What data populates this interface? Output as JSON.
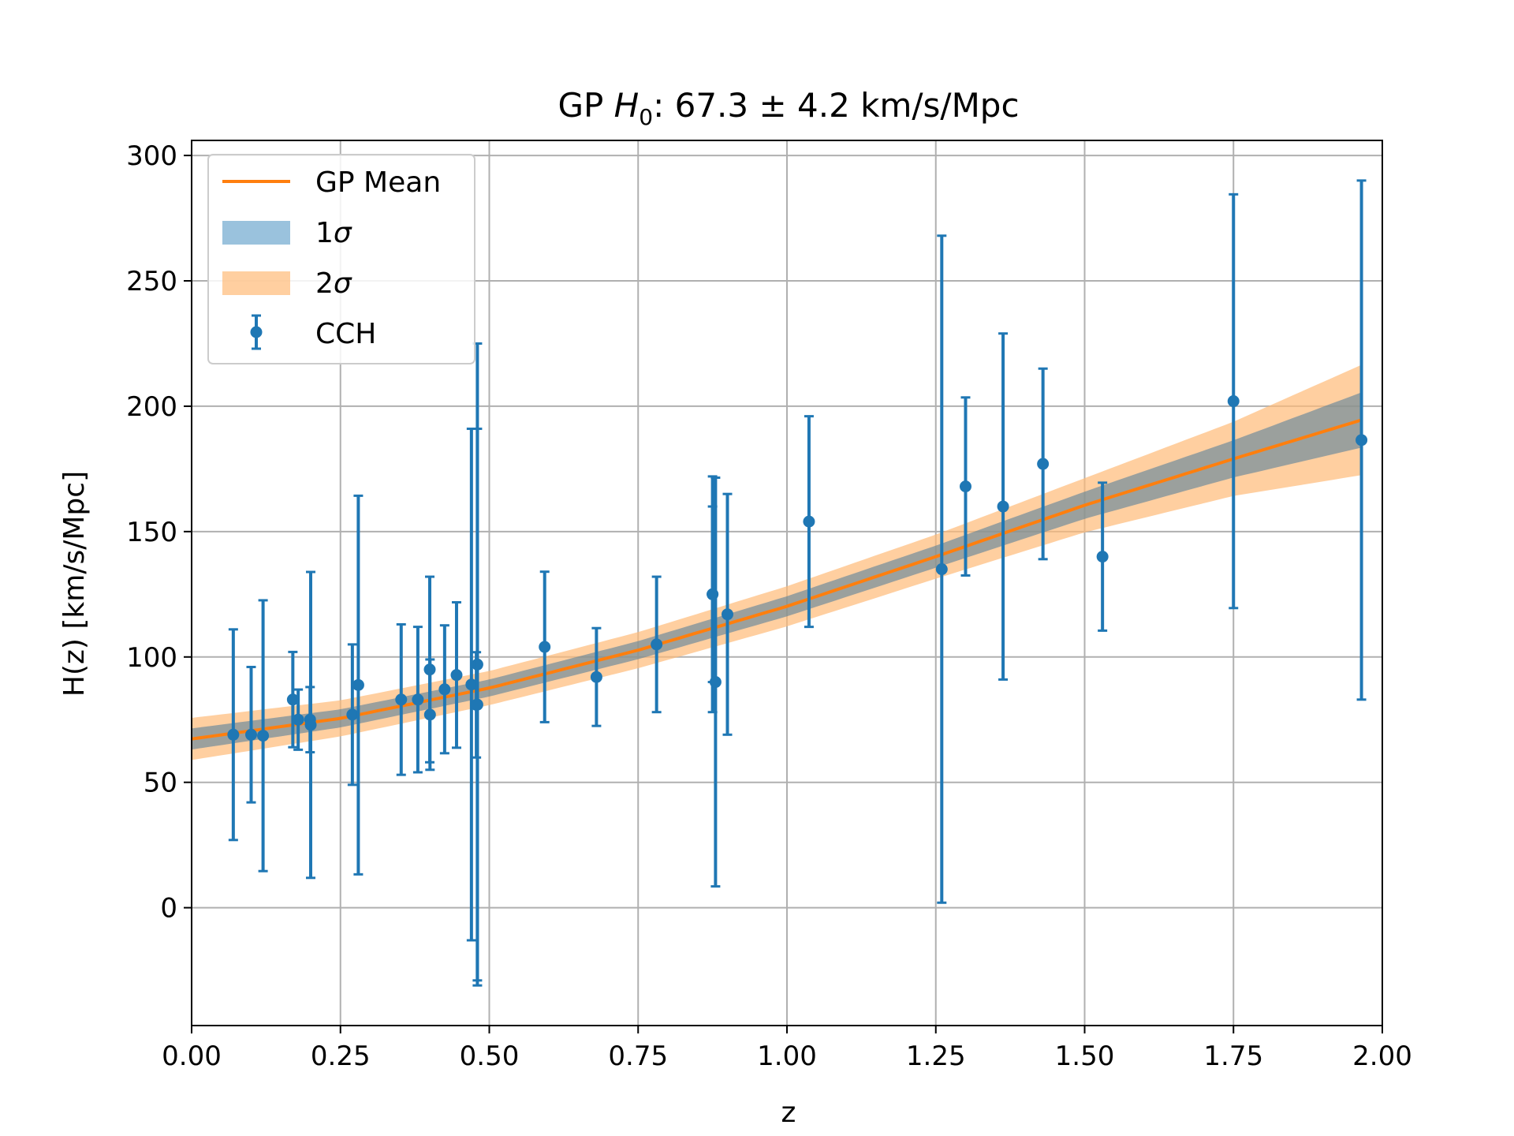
{
  "chart_data": {
    "type": "scatter",
    "title": {
      "prefix": "GP ",
      "symbol": "H",
      "subscript": "0",
      "suffix": ": 67.3 ± 4.2 km/s/Mpc"
    },
    "xlabel": "z",
    "ylabel": "H(z) [km/s/Mpc]",
    "xlim": [
      0,
      2
    ],
    "ylim": [
      -47,
      306
    ],
    "xticks": [
      0,
      0.25,
      0.5,
      0.75,
      1.0,
      1.25,
      1.5,
      1.75,
      2.0
    ],
    "xtick_labels": [
      "0.00",
      "0.25",
      "0.50",
      "0.75",
      "1.00",
      "1.25",
      "1.50",
      "1.75",
      "2.00"
    ],
    "yticks": [
      0,
      50,
      100,
      150,
      200,
      250,
      300
    ],
    "ytick_labels": [
      "0",
      "50",
      "100",
      "150",
      "200",
      "250",
      "300"
    ],
    "grid": true,
    "legend_position": "top-left",
    "legend": [
      {
        "label": "GP Mean",
        "kind": "line"
      },
      {
        "label": "1",
        "symbol": "σ",
        "kind": "band1"
      },
      {
        "label": "2",
        "symbol": "σ",
        "kind": "band2"
      },
      {
        "label": "CCH",
        "kind": "errorbar"
      }
    ],
    "colors": {
      "mean": "#ff7f0e",
      "band1": "#1f77b4",
      "band2": "#ffbb78",
      "points": "#1f77b4",
      "grid": "#b0b0b0"
    },
    "gp": {
      "z": [
        0.0,
        0.25,
        0.5,
        0.75,
        1.0,
        1.25,
        1.5,
        1.75,
        1.965
      ],
      "mean": [
        67.3,
        75.5,
        87.6,
        102.7,
        120.2,
        140.0,
        160.5,
        179.0,
        194.5
      ],
      "sigma": [
        4.2,
        3.6,
        3.4,
        3.6,
        4.0,
        4.4,
        5.4,
        7.4,
        11.0
      ]
    },
    "series": [
      {
        "name": "CCH",
        "points": [
          {
            "z": 0.07,
            "h": 69.0,
            "err": 42.0
          },
          {
            "z": 0.1,
            "h": 69.0,
            "err": 27.0
          },
          {
            "z": 0.12,
            "h": 68.6,
            "err": 54.0
          },
          {
            "z": 0.17,
            "h": 83.0,
            "err": 19.0
          },
          {
            "z": 0.179,
            "h": 75.0,
            "err": 12.0
          },
          {
            "z": 0.199,
            "h": 75.0,
            "err": 13.0
          },
          {
            "z": 0.2,
            "h": 72.9,
            "err": 61.0
          },
          {
            "z": 0.27,
            "h": 77.0,
            "err": 28.0
          },
          {
            "z": 0.28,
            "h": 88.8,
            "err": 75.5
          },
          {
            "z": 0.352,
            "h": 83.0,
            "err": 30.0
          },
          {
            "z": 0.38,
            "h": 83.0,
            "err": 29.0
          },
          {
            "z": 0.4,
            "h": 95.0,
            "err": 37.0
          },
          {
            "z": 0.4004,
            "h": 77.0,
            "err": 22.0
          },
          {
            "z": 0.425,
            "h": 87.1,
            "err": 25.5
          },
          {
            "z": 0.445,
            "h": 92.8,
            "err": 29.0
          },
          {
            "z": 0.47,
            "h": 89.0,
            "err": 102.0
          },
          {
            "z": 0.4783,
            "h": 80.9,
            "err": 21.0
          },
          {
            "z": 0.48,
            "h": 97.0,
            "err": 128.0
          },
          {
            "z": 0.48,
            "h": 81.0,
            "err": 110.0
          },
          {
            "z": 0.593,
            "h": 104.0,
            "err": 30.0
          },
          {
            "z": 0.68,
            "h": 92.0,
            "err": 19.5
          },
          {
            "z": 0.781,
            "h": 105.0,
            "err": 27.0
          },
          {
            "z": 0.875,
            "h": 125.0,
            "err": 35.0
          },
          {
            "z": 0.875,
            "h": 125.0,
            "err": 47.0
          },
          {
            "z": 0.88,
            "h": 90.0,
            "err": 81.5
          },
          {
            "z": 0.9,
            "h": 117.0,
            "err": 48.0
          },
          {
            "z": 1.037,
            "h": 154.0,
            "err": 42.0
          },
          {
            "z": 1.26,
            "h": 135.0,
            "err": 133.0
          },
          {
            "z": 1.3,
            "h": 168.0,
            "err": 35.5
          },
          {
            "z": 1.363,
            "h": 160.0,
            "err": 69.0
          },
          {
            "z": 1.43,
            "h": 177.0,
            "err": 38.0
          },
          {
            "z": 1.53,
            "h": 140.0,
            "err": 29.5
          },
          {
            "z": 1.75,
            "h": 202.0,
            "err": 82.5
          },
          {
            "z": 1.965,
            "h": 186.5,
            "err": 103.5
          }
        ]
      }
    ]
  }
}
